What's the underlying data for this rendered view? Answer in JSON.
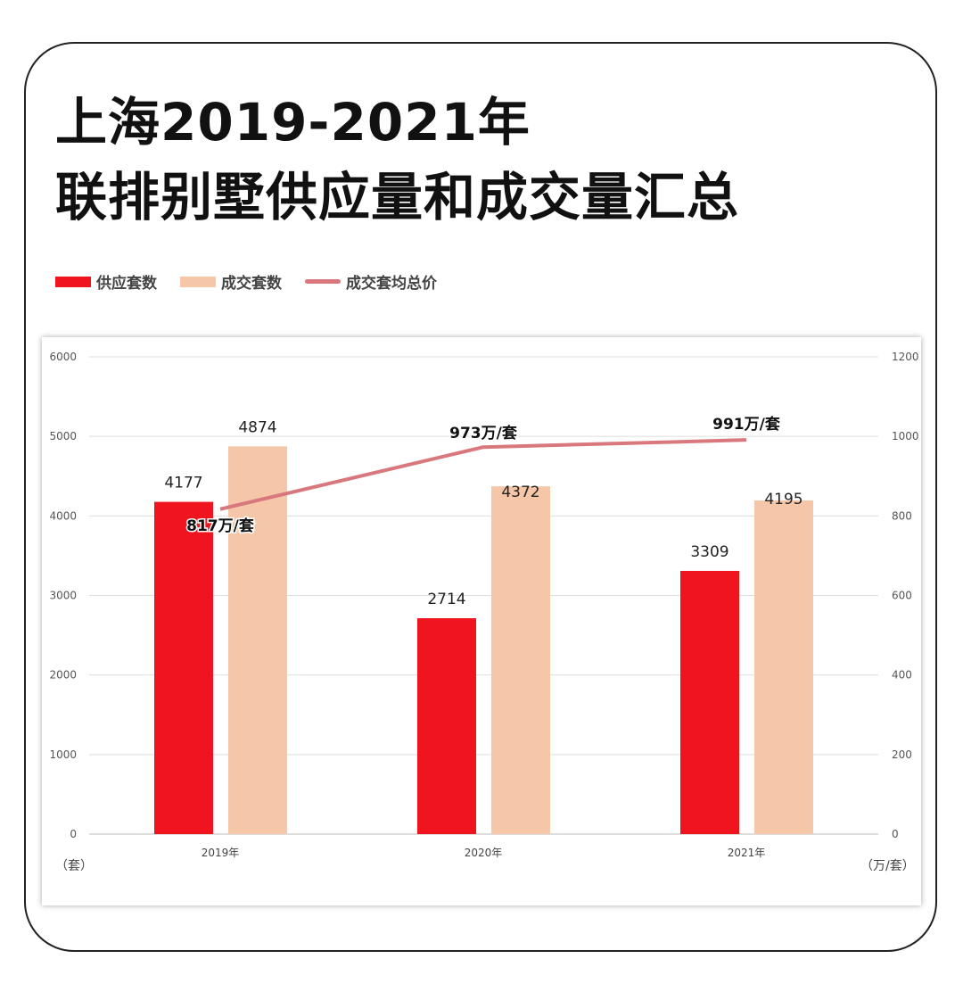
{
  "title_line1": "上海2019-2021年",
  "title_line2": "联排别墅供应量和成交量汇总",
  "chart_data": {
    "type": "bar+line",
    "categories": [
      "2019年",
      "2020年",
      "2021年"
    ],
    "series": [
      {
        "name": "供应套数",
        "type": "bar",
        "axis": "left",
        "color": "#f0141e",
        "values": [
          4177,
          2714,
          3309
        ],
        "labels": [
          "4177",
          "2714",
          "3309"
        ]
      },
      {
        "name": "成交套数",
        "type": "bar",
        "axis": "left",
        "color": "#f5c6a8",
        "values": [
          4874,
          4372,
          4195
        ],
        "labels": [
          "4874",
          "4372",
          "4195"
        ]
      },
      {
        "name": "成交套均总价",
        "type": "line",
        "axis": "right",
        "color": "#d9787c",
        "values": [
          817,
          973,
          991
        ],
        "labels": [
          "817万/套",
          "973万/套",
          "991万/套"
        ]
      }
    ],
    "y_left": {
      "range": [
        0,
        6000
      ],
      "ticks": [
        "0",
        "1000",
        "2000",
        "3000",
        "4000",
        "5000",
        "6000"
      ],
      "unit": "（套）"
    },
    "y_right": {
      "range": [
        0,
        1200
      ],
      "ticks": [
        "0",
        "200",
        "400",
        "600",
        "800",
        "1000",
        "1200"
      ],
      "unit": "（万/套）"
    },
    "grid": true,
    "legend_position": "top-left"
  }
}
